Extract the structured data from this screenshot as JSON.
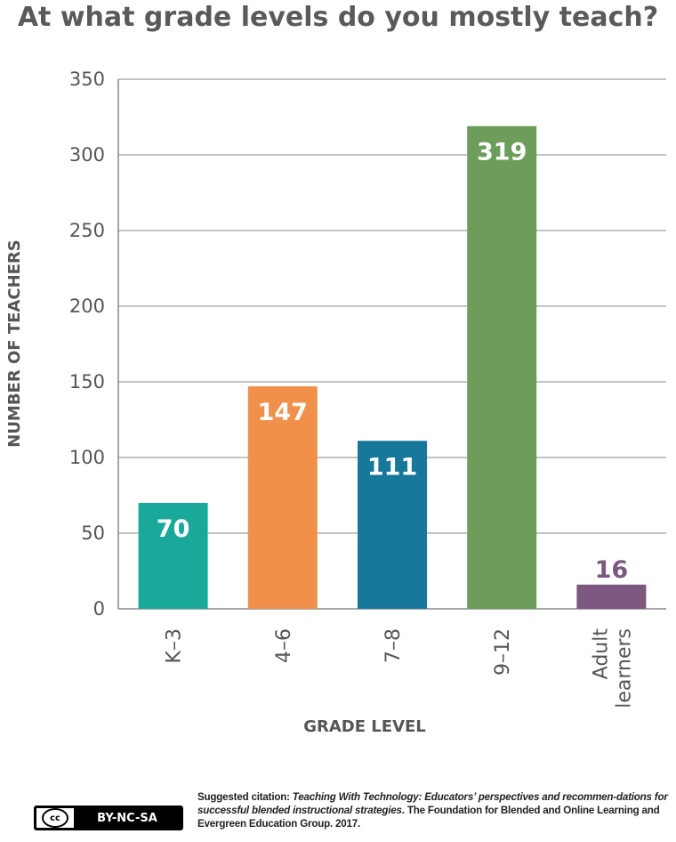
{
  "chart_data": {
    "type": "bar",
    "title": "At what grade levels do you mostly teach?",
    "xlabel": "GRADE LEVEL",
    "ylabel": "NUMBER OF TEACHERS",
    "ylim": [
      0,
      350
    ],
    "yticks": [
      0,
      50,
      100,
      150,
      200,
      250,
      300,
      350
    ],
    "categories": [
      {
        "label_lines": [
          "K–3"
        ],
        "value": 70,
        "color": "#1aa89a",
        "label_color": "#ffffff"
      },
      {
        "label_lines": [
          "4–6"
        ],
        "value": 147,
        "color": "#f0904a",
        "label_color": "#ffffff"
      },
      {
        "label_lines": [
          "7–8"
        ],
        "value": 111,
        "color": "#17789c",
        "label_color": "#ffffff"
      },
      {
        "label_lines": [
          "9–12"
        ],
        "value": 319,
        "color": "#6c9d5a",
        "label_color": "#ffffff"
      },
      {
        "label_lines": [
          "Adult",
          "learners"
        ],
        "value": 16,
        "color": "#7c5880",
        "label_color": "#7c5880"
      }
    ],
    "grid": true,
    "gridline_color": "#888888"
  },
  "citation": {
    "prefix": "Suggested citation: ",
    "title": "Teaching With Technology: Educators’ perspectives and recommen-dations for successful blended instructional strategies",
    "suffix": ". The Foundation for Blended and Online Learning and Evergreen Education Group. 2017."
  },
  "license": {
    "cc_mark": "cc",
    "label": "BY-NC-SA"
  }
}
